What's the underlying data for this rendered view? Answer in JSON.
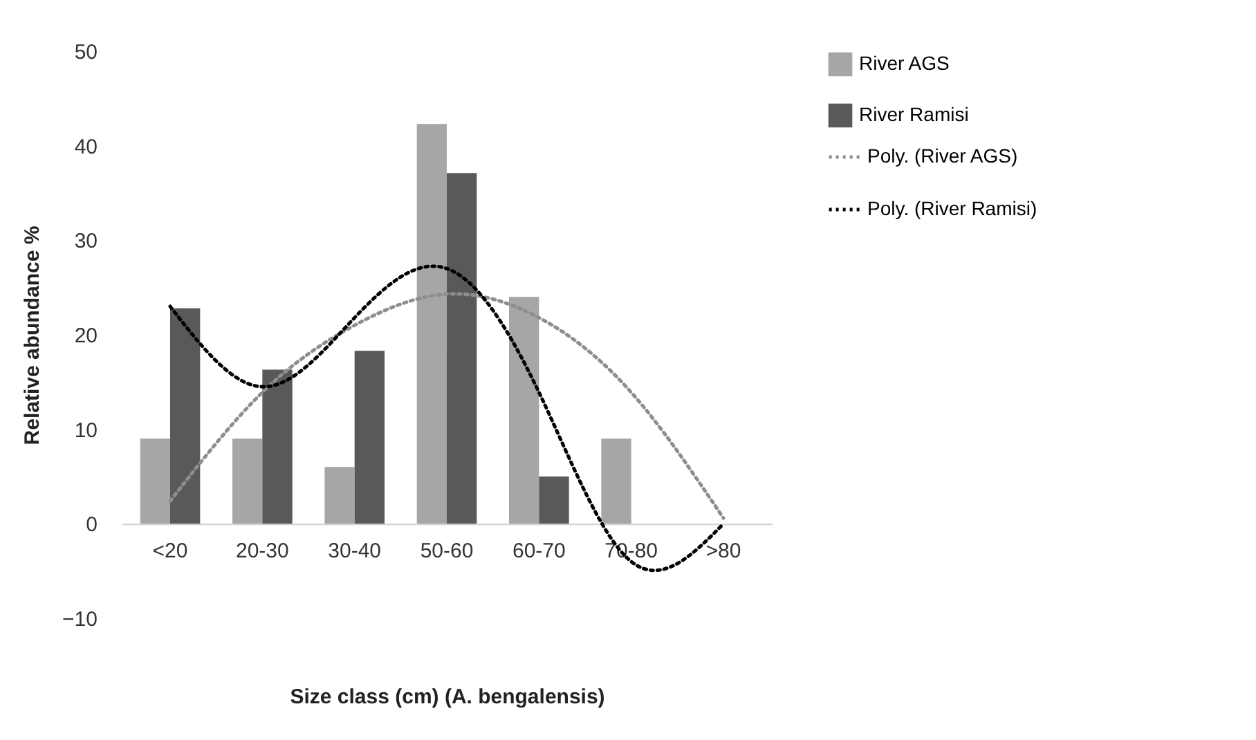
{
  "chart_data": {
    "type": "bar",
    "xlabel": "Size class (cm) (A. bengalensis)",
    "ylabel": "Relative abundance %",
    "categories": [
      "<20",
      "20-30",
      "30-40",
      "50-60",
      "60-70",
      "70-80",
      ">80"
    ],
    "series": [
      {
        "name": "River AGS",
        "color": "#a6a6a6",
        "values": [
          9.0,
          9.0,
          6.0,
          42.3,
          24.0,
          9.0,
          0
        ]
      },
      {
        "name": "River Ramisi",
        "color": "#595959",
        "values": [
          22.8,
          16.3,
          18.3,
          37.1,
          5.0,
          0,
          0
        ]
      },
      {
        "name": "Poly. (River AGS)",
        "type": "line",
        "line_style": "dotted",
        "color": "#8e8e8e",
        "values": [
          2.4,
          13.9,
          21.0,
          24.3,
          21.8,
          13.9,
          0.6
        ]
      },
      {
        "name": "Poly. (River Ramisi)",
        "type": "line",
        "line_style": "dotted",
        "color": "#000000",
        "values": [
          23.0,
          14.5,
          21.8,
          27.0,
          13.9,
          -4.0,
          0.0
        ]
      }
    ],
    "ylim": [
      -10,
      50
    ],
    "yticks": [
      -10,
      0,
      10,
      20,
      30,
      40,
      50
    ],
    "grid": false,
    "legend": "right",
    "marker": "none"
  }
}
